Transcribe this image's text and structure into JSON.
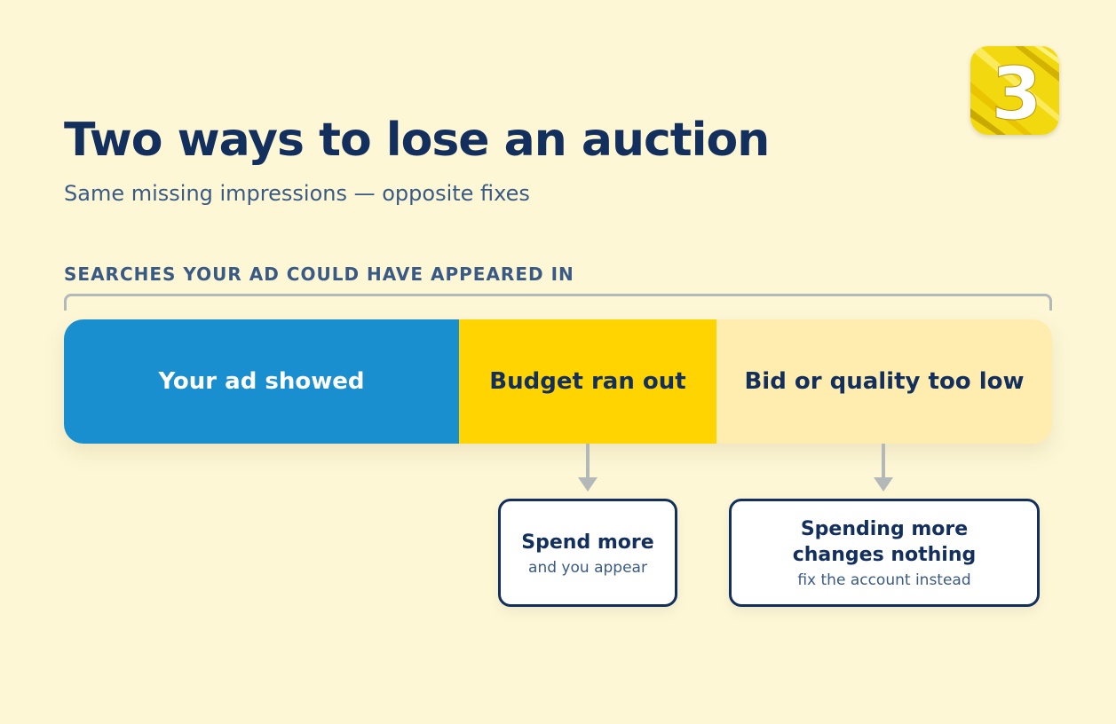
{
  "logo": {
    "icon": "number-three-logo-icon",
    "glyph": "3",
    "colors": {
      "background": "#f2d90f",
      "foreground": "#ffffff"
    }
  },
  "header": {
    "title": "Two ways to lose an auction",
    "subtitle": "Same missing impressions — opposite fixes"
  },
  "section": {
    "label": "SEARCHES YOUR AD COULD HAVE APPEARED IN"
  },
  "segments": [
    {
      "label": "Your ad showed",
      "color": "#1a8fcf"
    },
    {
      "label": "Budget ran out",
      "color": "#ffd400"
    },
    {
      "label": "Bid or quality too low",
      "color": "#ffedb0"
    }
  ],
  "callouts": [
    {
      "title": "Spend more",
      "title_line2": "",
      "subtitle": "and you appear"
    },
    {
      "title": "Spending more",
      "title_line2": "changes nothing",
      "subtitle": "fix the account instead"
    }
  ],
  "colors": {
    "background": "#fdf7d6",
    "navy": "#132f5e",
    "muted": "#3a5a86",
    "connector": "#b3b8b8"
  }
}
